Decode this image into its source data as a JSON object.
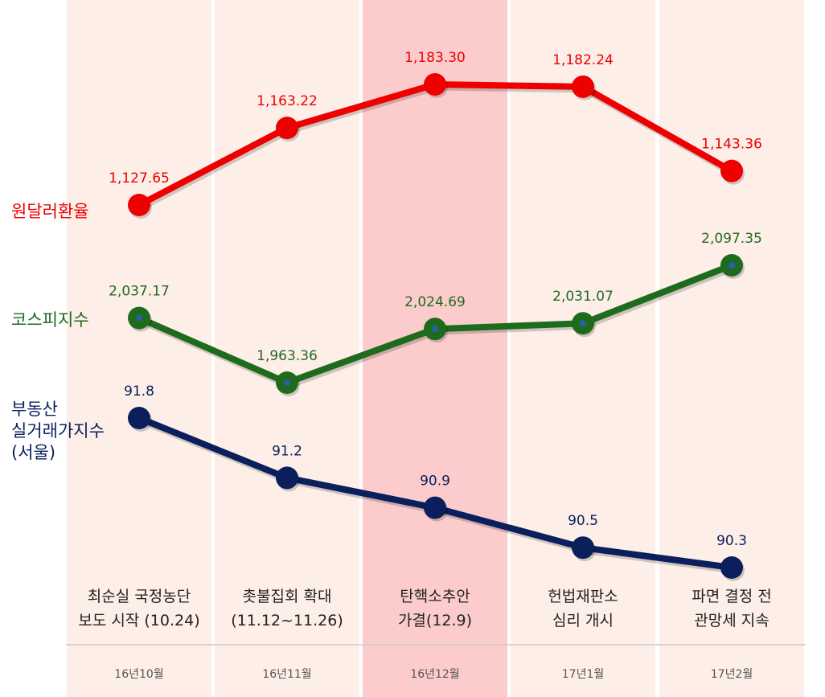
{
  "chart_data": {
    "type": "line",
    "categories": [
      "16년10월",
      "16년11월",
      "16년12월",
      "17년1월",
      "17년2월"
    ],
    "events": [
      "최순실 국정농단\n보도 시작 (10.24)",
      "촛불집회 확대\n(11.12~11.26)",
      "탄핵소추안\n가결(12.9)",
      "헌법재판소\n심리 개시",
      "파면 결정 전\n관망세 지속"
    ],
    "highlight_index": 2,
    "series": [
      {
        "name": "원달러환율",
        "color": "#ee0000",
        "values": [
          1127.65,
          1163.22,
          1183.3,
          1182.24,
          1143.36
        ],
        "labels": [
          "1,127.65",
          "1,163.22",
          "1,183.30",
          "1,182.24",
          "1,143.36"
        ]
      },
      {
        "name": "코스피지수",
        "color": "#1e6b1e",
        "values": [
          2037.17,
          1963.36,
          2024.69,
          2031.07,
          2097.35
        ],
        "labels": [
          "2,037.17",
          "1,963.36",
          "2,024.69",
          "2,031.07",
          "2,097.35"
        ]
      },
      {
        "name": "부동산\n실거래가지수\n(서울)",
        "color": "#0a1f5c",
        "values": [
          91.8,
          91.2,
          90.9,
          90.5,
          90.3
        ],
        "labels": [
          "91.8",
          "91.2",
          "90.9",
          "90.5",
          "90.3"
        ]
      }
    ],
    "colors": {
      "column_bg": "#fdeee8",
      "highlight_bg": "#fccccc",
      "divider": "#cccccc",
      "inner_dot": "#2a5fa8"
    },
    "grid": false,
    "legend": "left"
  }
}
